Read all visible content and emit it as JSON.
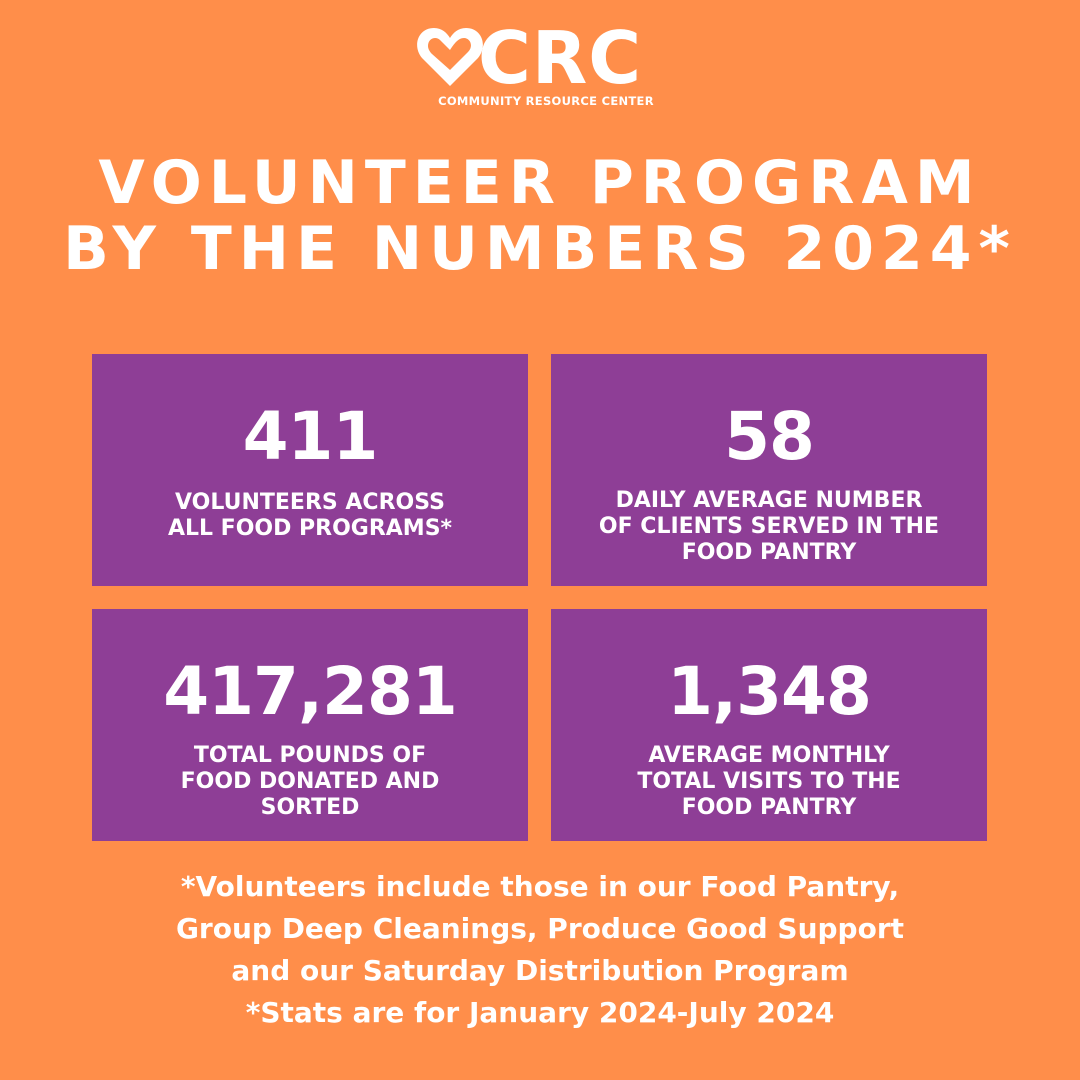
{
  "logo": {
    "mark": "CRC",
    "tagline": "COMMUNITY RESOURCE CENTER"
  },
  "title": [
    "VOLUNTEER PROGRAM",
    "BY THE NUMBERS 2024*"
  ],
  "stats": [
    {
      "value": "411",
      "label": [
        "VOLUNTEERS ACROSS",
        "ALL FOOD PROGRAMS*"
      ]
    },
    {
      "value": "58",
      "label": [
        "DAILY AVERAGE NUMBER",
        "OF CLIENTS SERVED IN THE",
        "FOOD PANTRY"
      ]
    },
    {
      "value": "417,281",
      "label": [
        "TOTAL POUNDS OF",
        "FOOD DONATED AND",
        "SORTED"
      ]
    },
    {
      "value": "1,348",
      "label": [
        "AVERAGE MONTHLY",
        "TOTAL VISITS TO THE",
        "FOOD PANTRY"
      ]
    }
  ],
  "footnotes": [
    "*Volunteers include those in our Food Pantry,",
    "Group Deep Cleanings, Produce Good Support",
    "and our Saturday Distribution Program",
    "*Stats are for January 2024-July 2024"
  ]
}
